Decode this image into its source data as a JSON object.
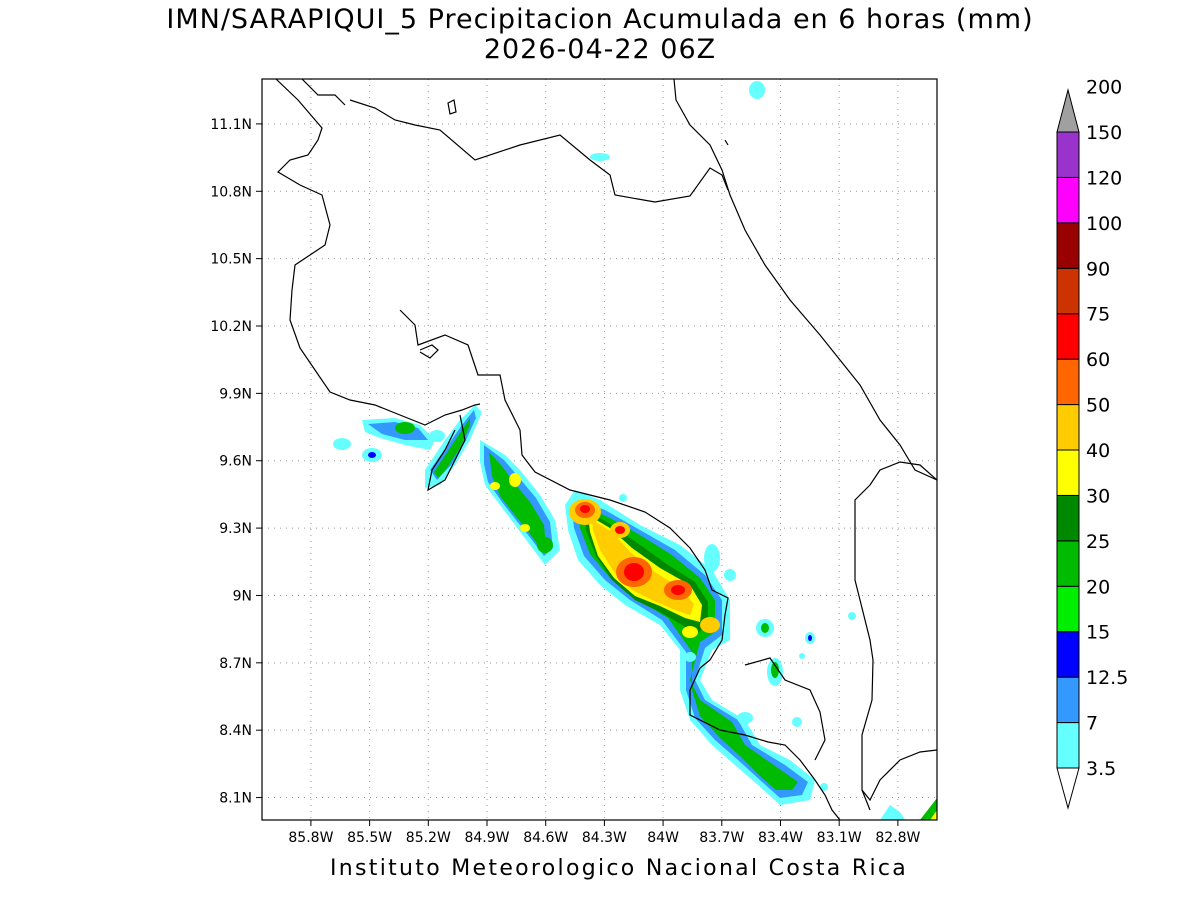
{
  "title": {
    "line1": "IMN/SARAPIQUI_5 Precipitacion Acumulada en 6 horas (mm)",
    "line2": "2026-04-22 06Z"
  },
  "footer": "Instituto Meteorologico Nacional Costa Rica",
  "map": {
    "lon_range": [
      -86.05,
      -82.6
    ],
    "lat_range": [
      8.0,
      11.3
    ],
    "lat_ticks": [
      "8.1N",
      "8.4N",
      "8.7N",
      "9N",
      "9.3N",
      "9.6N",
      "9.9N",
      "10.2N",
      "10.5N",
      "10.8N",
      "11.1N"
    ],
    "lon_ticks": [
      "85.8W",
      "85.5W",
      "85.2W",
      "84.9W",
      "84.6W",
      "84.3W",
      "84W",
      "83.7W",
      "83.4W",
      "83.1W",
      "82.8W"
    ],
    "grid": "dotted"
  },
  "colorbar": {
    "levels": [
      "3.5",
      "7",
      "12.5",
      "15",
      "20",
      "25",
      "30",
      "40",
      "50",
      "60",
      "75",
      "90",
      "100",
      "120",
      "150",
      "200"
    ],
    "colors": [
      "#66ffff",
      "#3399ff",
      "#0000ff",
      "#00ee00",
      "#00bb00",
      "#008800",
      "#ffff00",
      "#ffcc00",
      "#ff6600",
      "#ff0000",
      "#cc3300",
      "#990000",
      "#ff00ff",
      "#9933cc",
      "#f5f5f5",
      "#a0a0a0"
    ]
  }
}
